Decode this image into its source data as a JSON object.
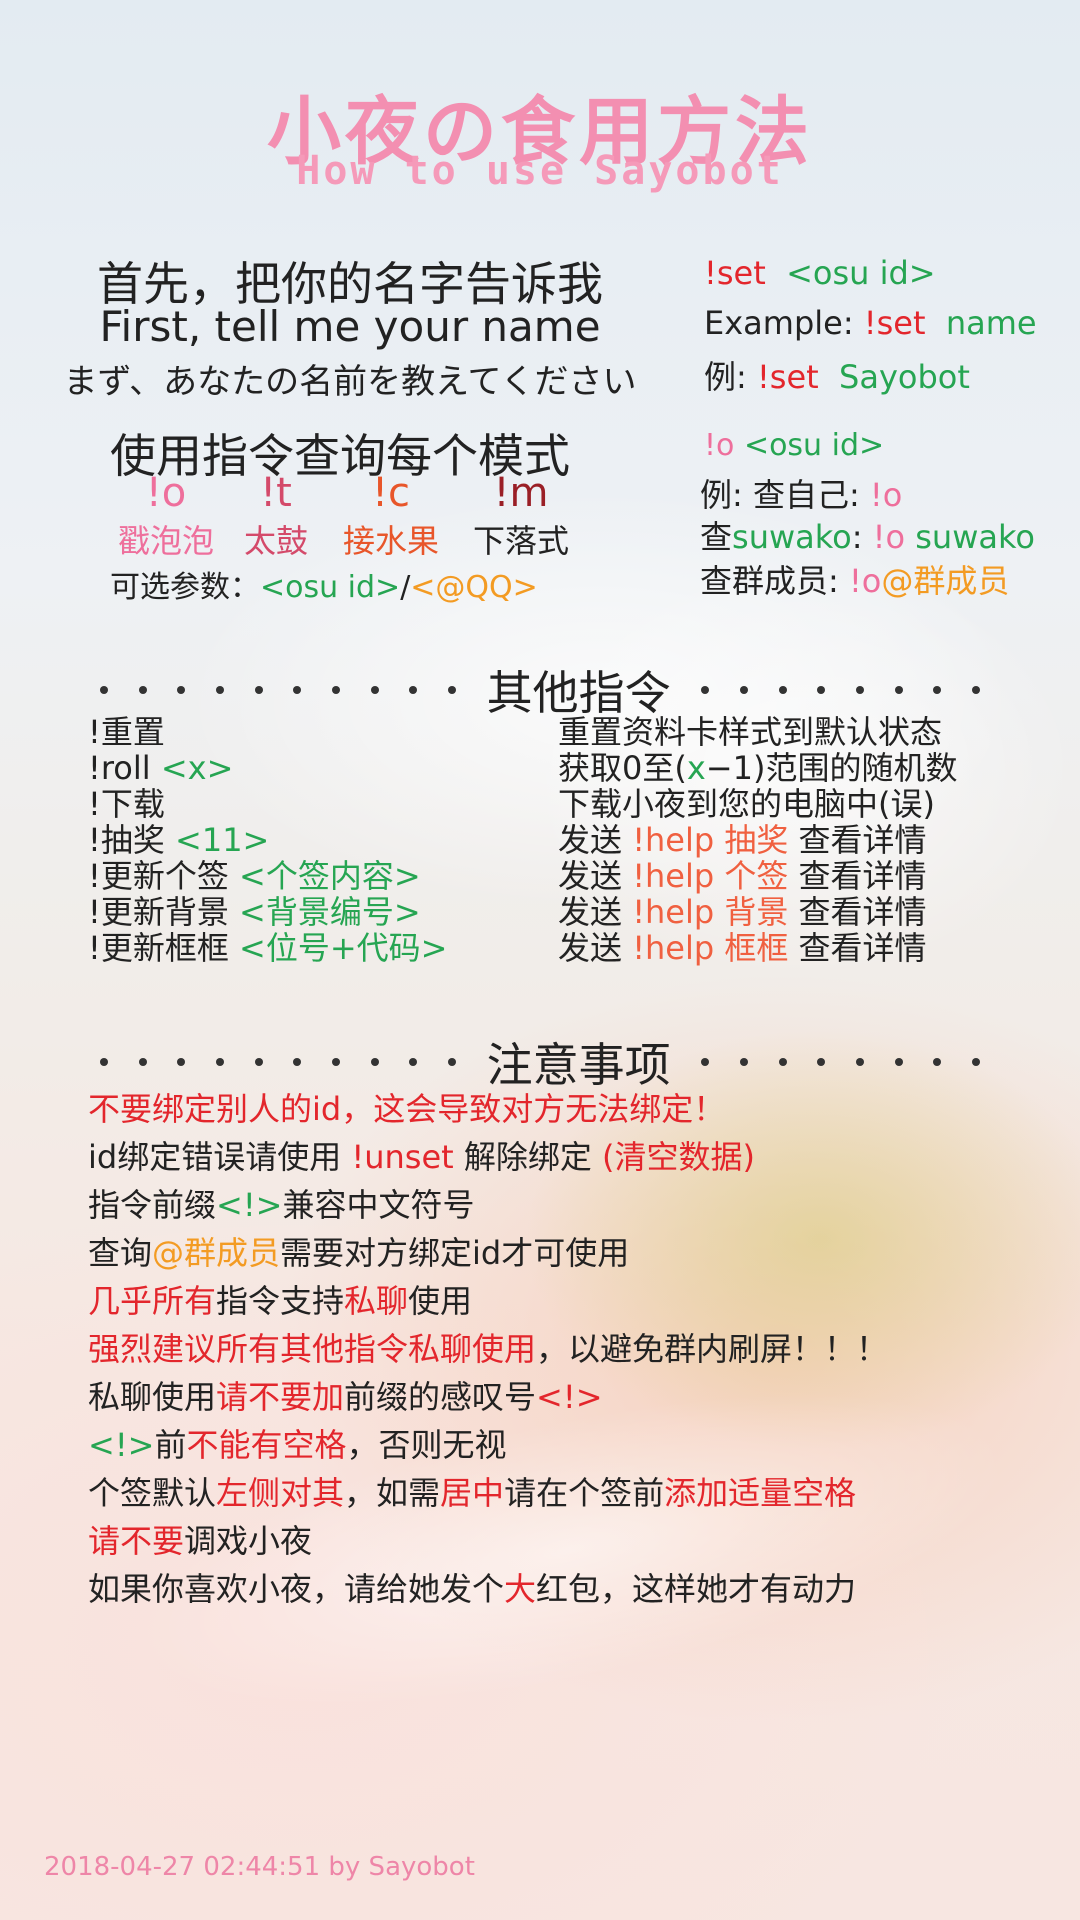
{
  "title": {
    "cn": "小夜の食用方法",
    "en": "How to use Sayobot"
  },
  "intro": {
    "line_cn": "首先，把你的名字告诉我",
    "line_en": "First, tell me your name",
    "line_jp": "まず、あなたの名前を教えてください",
    "set_cmd": "!set",
    "set_arg": "<osu id>",
    "example_label": "Example: ",
    "example_cmd": "!set",
    "example_arg": "name",
    "example2_label": "例: ",
    "example2_cmd": "!set",
    "example2_arg": "Sayobot"
  },
  "modes": {
    "heading": "使用指令查询每个模式",
    "items": [
      {
        "cmd": "!o",
        "name": "戳泡泡"
      },
      {
        "cmd": "!t",
        "name": "太鼓"
      },
      {
        "cmd": "!c",
        "name": "接水果"
      },
      {
        "cmd": "!m",
        "name": "下落式"
      }
    ],
    "params_label": "可选参数：",
    "params_osu": "<osu id>",
    "params_sep": "/",
    "params_qq": "<@QQ>",
    "o_cmd": "!o",
    "o_arg": "<osu id>",
    "self_label": "例: 查自己: ",
    "self_cmd": "!o",
    "suwako_label1": "查",
    "suwako_name": "suwako",
    "suwako_label2": ": ",
    "suwako_cmd": "!o",
    "suwako_arg": "suwako",
    "group_label": "查群成员: ",
    "group_cmd": "!o",
    "group_arg": "@群成员"
  },
  "other": {
    "heading": "其他指令",
    "rows": [
      {
        "cmd": "!重置",
        "arg": "",
        "desc": "重置资料卡样式到默认状态"
      },
      {
        "cmd": "!roll ",
        "arg": "<x>",
        "desc_a": "获取0至(",
        "desc_x": "x",
        "desc_b": "−1)范围的随机数"
      },
      {
        "cmd": "!下载",
        "arg": "",
        "desc": "下载小夜到您的电脑中(误)"
      },
      {
        "cmd": "!抽奖 ",
        "arg": "<11>",
        "send": "发送 ",
        "help": "!help 抽奖",
        "tail": " 查看详情"
      },
      {
        "cmd": "!更新个签 ",
        "arg": "<个签内容>",
        "send": "发送 ",
        "help": "!help 个签",
        "tail": " 查看详情"
      },
      {
        "cmd": "!更新背景 ",
        "arg": "<背景编号>",
        "send": "发送 ",
        "help": "!help 背景",
        "tail": " 查看详情"
      },
      {
        "cmd": "!更新框框 ",
        "arg": "<位号+代码>",
        "send": "发送 ",
        "help": "!help 框框",
        "tail": " 查看详情"
      }
    ]
  },
  "notes": {
    "heading": "注意事项",
    "n1": "不要绑定别人的id，这会导致对方无法绑定！",
    "n2_a": "id绑定错误请使用 ",
    "n2_b": "!unset",
    "n2_c": " 解除绑定 ",
    "n2_d": "(清空数据)",
    "n3_a": "指令前缀",
    "n3_b": "<!>",
    "n3_c": "兼容中文符号",
    "n4_a": "查询",
    "n4_b": "@群成员",
    "n4_c": "需要对方绑定id才可使用",
    "n5_a": "几乎所有",
    "n5_b": "指令支持",
    "n5_c": "私聊",
    "n5_d": "使用",
    "n6_a": "强烈建议所有其他指令私聊使用",
    "n6_b": "，以避免群内刷屏！！！",
    "n7_a": "私聊使用",
    "n7_b": "请不要加",
    "n7_c": "前缀的感叹号",
    "n7_d": "<!>",
    "n8_a": "<!>",
    "n8_b": "前",
    "n8_c": "不能有空格",
    "n8_d": "，否则无视",
    "n9_a": "个签默认",
    "n9_b": "左侧对其",
    "n9_c": "，如需",
    "n9_d": "居中",
    "n9_e": "请在个签前",
    "n9_f": "添加适量空格",
    "n10_a": "请不要",
    "n10_b": "调戏小夜",
    "n11_a": "如果你喜欢小夜，请给她发个",
    "n11_b": "大",
    "n11_c": "红包，这样她才有动力"
  },
  "footer": {
    "timestamp": "2018-04-27 02:44:51",
    "by": "  by Sayobot"
  },
  "colors": {
    "pink": "#ee6f9c",
    "red": "#e3262c",
    "green": "#26a552",
    "orange": "#f39b23"
  }
}
